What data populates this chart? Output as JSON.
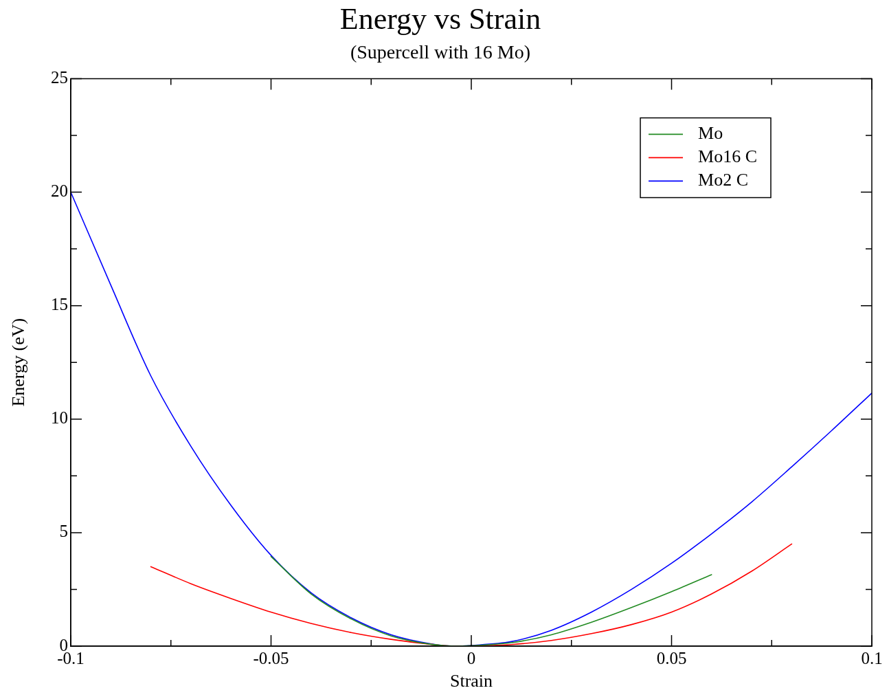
{
  "chart_data": {
    "type": "line",
    "title": "Energy vs Strain",
    "subtitle": "(Supercell with 16 Mo)",
    "xlabel": "Strain",
    "ylabel": "Energy (eV)",
    "xlim": [
      -0.1,
      0.1
    ],
    "ylim": [
      0,
      25
    ],
    "xticks": [
      -0.1,
      {
        "value": -0.075,
        "label": null
      },
      -0.05,
      {
        "value": -0.025,
        "label": null
      },
      0,
      {
        "value": 0.025,
        "label": null
      },
      0.05,
      {
        "value": 0.075,
        "label": null
      },
      0.1
    ],
    "yticks": [
      0,
      {
        "value": 2.5,
        "label": null
      },
      5,
      {
        "value": 7.5,
        "label": null
      },
      10,
      {
        "value": 12.5,
        "label": null
      },
      15,
      {
        "value": 17.5,
        "label": null
      },
      20,
      {
        "value": 22.5,
        "label": null
      },
      25
    ],
    "grid": false,
    "legend": "top right",
    "marker": "none",
    "line_style": "solid",
    "series": [
      {
        "name": "Mo",
        "color": "#228b22",
        "x": [
          -0.05,
          -0.04,
          -0.03,
          -0.02,
          -0.01,
          -0.004,
          0,
          0.01,
          0.02,
          0.03,
          0.04,
          0.05,
          0.06
        ],
        "values": [
          3.95,
          2.3,
          1.2,
          0.45,
          0.08,
          0,
          0.02,
          0.15,
          0.5,
          1.05,
          1.7,
          2.4,
          3.15
        ]
      },
      {
        "name": "Mo16 C",
        "color": "#ff0000",
        "x": [
          -0.08,
          -0.07,
          -0.06,
          -0.05,
          -0.04,
          -0.03,
          -0.02,
          -0.01,
          -0.004,
          0,
          0.01,
          0.02,
          0.03,
          0.04,
          0.05,
          0.06,
          0.07,
          0.08
        ],
        "values": [
          3.5,
          2.75,
          2.1,
          1.5,
          1.0,
          0.6,
          0.3,
          0.08,
          0,
          0.01,
          0.07,
          0.25,
          0.55,
          0.95,
          1.5,
          2.3,
          3.3,
          4.5
        ]
      },
      {
        "name": "Mo2 C",
        "color": "#0000ff",
        "x": [
          -0.1,
          -0.09,
          -0.08,
          -0.07,
          -0.06,
          -0.05,
          -0.04,
          -0.03,
          -0.02,
          -0.01,
          -0.004,
          0,
          0.01,
          0.02,
          0.03,
          0.04,
          0.05,
          0.06,
          0.07,
          0.08,
          0.09,
          0.1
        ],
        "values": [
          20,
          15.9,
          11.9,
          8.8,
          6.2,
          4.0,
          2.35,
          1.25,
          0.5,
          0.1,
          0,
          0.03,
          0.2,
          0.7,
          1.5,
          2.5,
          3.65,
          4.95,
          6.35,
          7.9,
          9.5,
          11.15
        ]
      }
    ]
  }
}
